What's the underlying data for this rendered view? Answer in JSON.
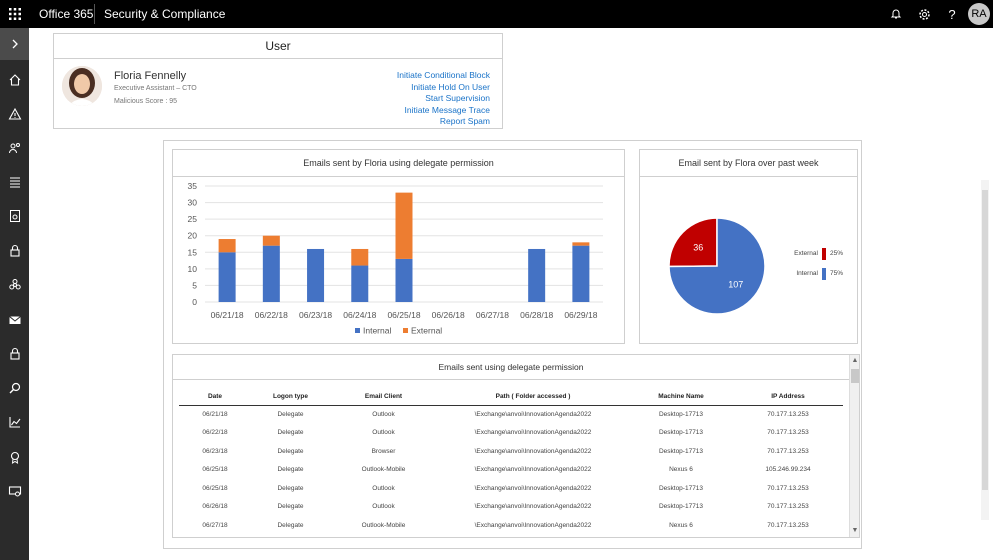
{
  "topbar": {
    "brand": "Office 365",
    "product": "Security & Compliance",
    "avatar_initials": "RA",
    "icons": [
      "waffle-icon",
      "bell-icon",
      "gear-icon",
      "help-icon"
    ],
    "help_glyph": "?"
  },
  "rail": {
    "items": [
      "home-icon",
      "alert-icon",
      "people-icon",
      "list-icon",
      "report-doc-icon",
      "lock-icon",
      "biohazard-icon",
      "mail-icon",
      "lock-icon",
      "search-icon",
      "chart-icon",
      "badge-icon",
      "folder-icon"
    ]
  },
  "user_card": {
    "header": "User",
    "name": "Floria Fennelly",
    "role": "Executive Assistant – CTO",
    "score": "Malicious Score : 95",
    "actions": [
      "Initiate Conditional Block",
      "Initiate Hold On User",
      "Start Supervision",
      "Initiate Message Trace",
      "Report Spam"
    ]
  },
  "bar_panel": {
    "title": "Emails sent by Floria using delegate permission"
  },
  "pie_panel": {
    "title": "Email sent by Flora over past week"
  },
  "chart_data": [
    {
      "type": "bar",
      "stacked": true,
      "title": "Emails sent by Floria using delegate permission",
      "categories": [
        "06/21/18",
        "06/22/18",
        "06/23/18",
        "06/24/18",
        "06/25/18",
        "06/26/18",
        "06/27/18",
        "06/28/18",
        "06/29/18"
      ],
      "series": [
        {
          "name": "Internal",
          "color": "#4472c4",
          "values": [
            15,
            17,
            16,
            11,
            13,
            0,
            0,
            16,
            17
          ]
        },
        {
          "name": "External",
          "color": "#ed7d31",
          "values": [
            4,
            3,
            0,
            5,
            20,
            0,
            0,
            0,
            1
          ]
        }
      ],
      "yticks": [
        0,
        5,
        10,
        15,
        20,
        25,
        30,
        35
      ],
      "ylim": [
        0,
        35
      ],
      "grid": true,
      "legend": "bottom"
    },
    {
      "type": "pie",
      "title": "Email sent by Flora over past week",
      "slices": [
        {
          "label": "External",
          "value": 36,
          "percent": "25%",
          "color": "#c00000"
        },
        {
          "label": "Internal",
          "value": 107,
          "percent": "75%",
          "color": "#4472c4"
        }
      ],
      "legend": "right"
    }
  ],
  "table": {
    "title": "Emails sent using delegate permission",
    "columns": [
      "Date",
      "Logon type",
      "Email Client",
      "Path ( Folder accessed )",
      "Machine Name",
      "IP Address"
    ],
    "rows": [
      [
        "06/21/18",
        "Delegate",
        "Outlook",
        "\\Exchange\\anvoi\\InnovationAgenda2022",
        "Desktop-17713",
        "70.177.13.253"
      ],
      [
        "06/22/18",
        "Delegate",
        "Outlook",
        "\\Exchange\\anvoi\\InnovationAgenda2022",
        "Desktop-17713",
        "70.177.13.253"
      ],
      [
        "06/23/18",
        "Delegate",
        "Browser",
        "\\Exchange\\anvoi\\InnovationAgenda2022",
        "Desktop-17713",
        "70.177.13.253"
      ],
      [
        "06/25/18",
        "Delegate",
        "Outlook-Mobile",
        "\\Exchange\\anvoi\\InnovationAgenda2022",
        "Nexus 6",
        "105.246.99.234"
      ],
      [
        "06/25/18",
        "Delegate",
        "Outlook",
        "\\Exchange\\anvoi\\InnovationAgenda2022",
        "Desktop-17713",
        "70.177.13.253"
      ],
      [
        "06/26/18",
        "Delegate",
        "Outlook",
        "\\Exchange\\anvoi\\InnovationAgenda2022",
        "Desktop-17713",
        "70.177.13.253"
      ],
      [
        "06/27/18",
        "Delegate",
        "Outlook-Mobile",
        "\\Exchange\\anvoi\\InnovationAgenda2022",
        "Nexus 6",
        "70.177.13.253"
      ]
    ]
  }
}
